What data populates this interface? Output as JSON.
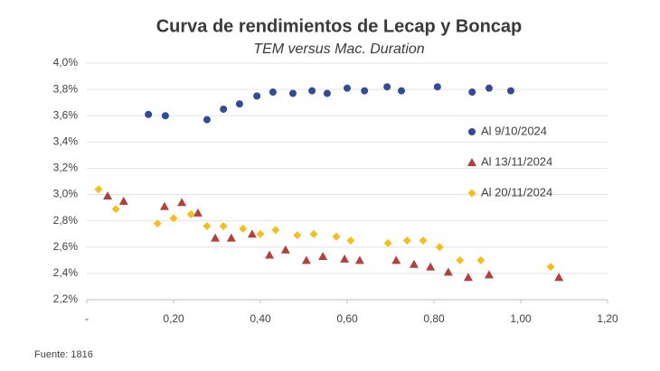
{
  "chart_data": {
    "type": "scatter",
    "title": "Curva de rendimientos de Lecap y Boncap",
    "subtitle": "TEM versus Mac. Duration",
    "source": "Fuente: 1816",
    "xlim": [
      0,
      1.2
    ],
    "ylim": [
      2.2,
      4.0
    ],
    "xticks": [
      {
        "value": 0,
        "label": "-"
      },
      {
        "value": 0.2,
        "label": "0,20"
      },
      {
        "value": 0.4,
        "label": "0,40"
      },
      {
        "value": 0.6,
        "label": "0,60"
      },
      {
        "value": 0.8,
        "label": "0,80"
      },
      {
        "value": 1.0,
        "label": "1,00"
      },
      {
        "value": 1.2,
        "label": "1,20"
      }
    ],
    "yticks": [
      {
        "value": 2.2,
        "label": "2,2%"
      },
      {
        "value": 2.4,
        "label": "2,4%"
      },
      {
        "value": 2.6,
        "label": "2,6%"
      },
      {
        "value": 2.8,
        "label": "2,8%"
      },
      {
        "value": 3.0,
        "label": "3,0%"
      },
      {
        "value": 3.2,
        "label": "3,2%"
      },
      {
        "value": 3.4,
        "label": "3,4%"
      },
      {
        "value": 3.6,
        "label": "3,6%"
      },
      {
        "value": 3.8,
        "label": "3,8%"
      },
      {
        "value": 4.0,
        "label": "4,0%"
      }
    ],
    "grid": true,
    "legend": "right",
    "series": [
      {
        "name": "Al 9/10/2024",
        "color": "#2f4b9a",
        "marker": "circle",
        "x": [
          0.142,
          0.181,
          0.277,
          0.315,
          0.352,
          0.392,
          0.429,
          0.475,
          0.519,
          0.554,
          0.6,
          0.64,
          0.692,
          0.725,
          0.808,
          0.888,
          0.927,
          0.977
        ],
        "values": [
          3.61,
          3.6,
          3.57,
          3.65,
          3.69,
          3.75,
          3.78,
          3.77,
          3.79,
          3.77,
          3.81,
          3.79,
          3.82,
          3.79,
          3.82,
          3.78,
          3.81,
          3.79
        ]
      },
      {
        "name": "Al 13/11/2024",
        "color": "#b5403a",
        "marker": "triangle",
        "x": [
          0.048,
          0.085,
          0.179,
          0.219,
          0.256,
          0.296,
          0.333,
          0.381,
          0.421,
          0.458,
          0.506,
          0.544,
          0.594,
          0.629,
          0.713,
          0.754,
          0.792,
          0.833,
          0.879,
          0.927,
          1.088
        ],
        "values": [
          2.99,
          2.95,
          2.91,
          2.94,
          2.86,
          2.67,
          2.67,
          2.7,
          2.54,
          2.58,
          2.5,
          2.53,
          2.51,
          2.5,
          2.5,
          2.47,
          2.45,
          2.41,
          2.37,
          2.39,
          2.37
        ]
      },
      {
        "name": "Al 20/11/2024",
        "color": "#f5be1b",
        "marker": "diamond",
        "x": [
          0.027,
          0.067,
          0.163,
          0.2,
          0.24,
          0.277,
          0.315,
          0.36,
          0.4,
          0.435,
          0.485,
          0.523,
          0.575,
          0.608,
          0.694,
          0.738,
          0.775,
          0.813,
          0.86,
          0.908,
          1.069
        ],
        "values": [
          3.04,
          2.89,
          2.78,
          2.82,
          2.85,
          2.76,
          2.76,
          2.74,
          2.7,
          2.73,
          2.69,
          2.7,
          2.68,
          2.65,
          2.63,
          2.65,
          2.65,
          2.6,
          2.5,
          2.5,
          2.45
        ]
      }
    ]
  }
}
